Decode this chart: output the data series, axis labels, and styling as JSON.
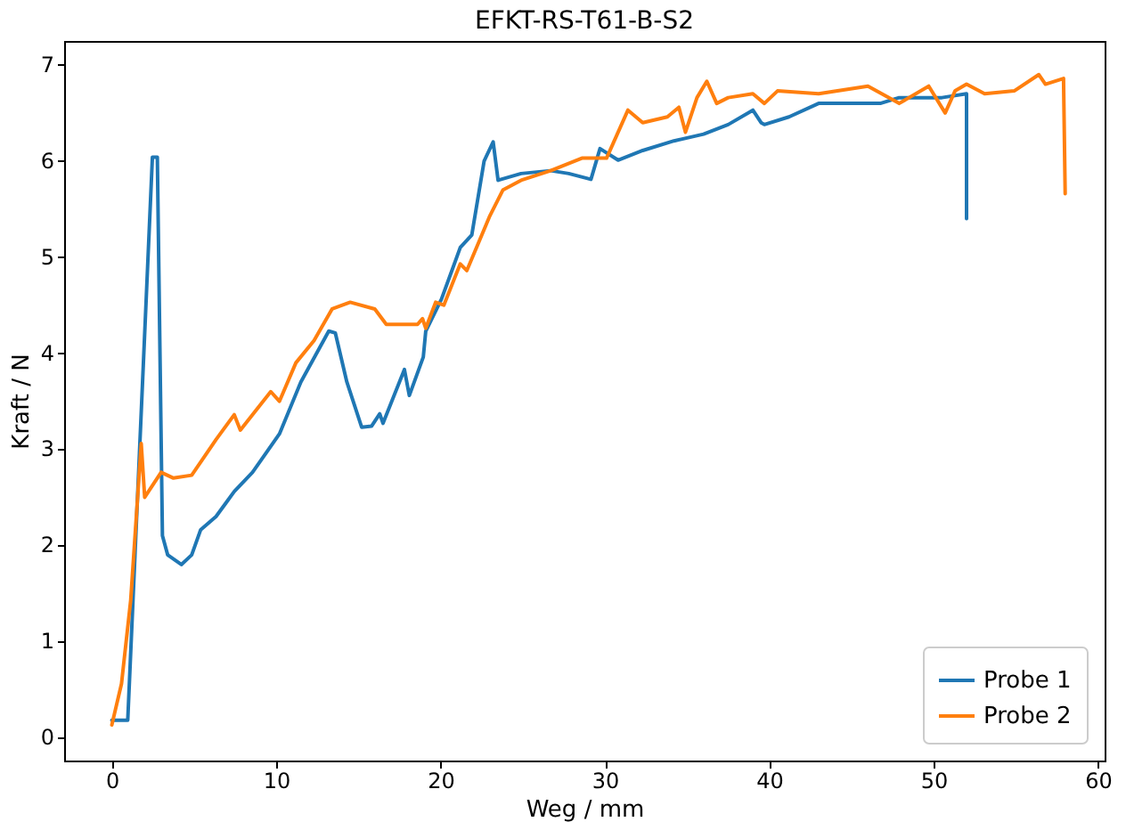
{
  "chart_data": {
    "type": "line",
    "title": "EFKT-RS-T61-B-S2",
    "xlabel": "Weg / mm",
    "ylabel": "Kraft / N",
    "xlim": [
      -2.9,
      60.4
    ],
    "ylim": [
      -0.25,
      7.24
    ],
    "xticks": [
      0,
      10,
      20,
      30,
      40,
      50,
      60
    ],
    "yticks": [
      0,
      1,
      2,
      3,
      4,
      5,
      6,
      7
    ],
    "grid": false,
    "legend": "bottom right",
    "marker": "none",
    "line_style": "solid",
    "series": [
      {
        "name": "Probe 1",
        "color": "#1f77b4",
        "x": [
          0,
          0.97,
          2.47,
          2.77,
          3.08,
          3.4,
          4.23,
          4.86,
          5.4,
          6.34,
          7.45,
          8.56,
          10.2,
          11.5,
          13.2,
          13.6,
          14.3,
          15.2,
          15.8,
          16.3,
          16.5,
          17.8,
          18.1,
          18.95,
          19.1,
          20.05,
          21.2,
          21.9,
          22.65,
          23.2,
          23.5,
          24.9,
          26.7,
          27.8,
          29.15,
          29.7,
          30.8,
          32.3,
          34.2,
          36.0,
          37.5,
          39.0,
          39.5,
          39.7,
          41.2,
          43.0,
          44.9,
          46.75,
          47.9,
          50.5,
          52.0,
          52.0
        ],
        "values": [
          0.17,
          0.17,
          6.03,
          6.03,
          2.09,
          1.89,
          1.79,
          1.89,
          2.15,
          2.29,
          2.55,
          2.75,
          3.15,
          3.69,
          4.22,
          4.2,
          3.69,
          3.22,
          3.23,
          3.36,
          3.26,
          3.82,
          3.55,
          3.95,
          4.22,
          4.55,
          5.09,
          5.22,
          5.99,
          6.19,
          5.79,
          5.86,
          5.89,
          5.86,
          5.8,
          6.12,
          6.0,
          6.1,
          6.2,
          6.27,
          6.37,
          6.52,
          6.39,
          6.37,
          6.45,
          6.59,
          6.59,
          6.59,
          6.65,
          6.65,
          6.69,
          5.39
        ]
      },
      {
        "name": "Probe 2",
        "color": "#ff7f0e",
        "x": [
          0,
          0.59,
          1.15,
          1.79,
          2.0,
          3.0,
          3.75,
          4.86,
          6.34,
          7.45,
          7.82,
          9.67,
          10.2,
          11.2,
          12.3,
          13.4,
          14.5,
          16.0,
          16.7,
          18.6,
          18.9,
          19.1,
          19.7,
          20.2,
          21.2,
          21.6,
          23.0,
          23.8,
          24.9,
          26.7,
          28.6,
          30.1,
          31.4,
          32.3,
          33.8,
          34.5,
          34.9,
          35.6,
          36.2,
          36.8,
          37.5,
          39.0,
          39.7,
          40.5,
          43.0,
          46.0,
          47.9,
          49.7,
          50.7,
          51.3,
          52.0,
          53.1,
          54.9,
          56.4,
          56.8,
          57.9,
          58.0
        ],
        "values": [
          0.12,
          0.55,
          1.42,
          3.05,
          2.49,
          2.75,
          2.69,
          2.72,
          3.09,
          3.35,
          3.19,
          3.59,
          3.49,
          3.89,
          4.12,
          4.45,
          4.52,
          4.45,
          4.29,
          4.29,
          4.35,
          4.25,
          4.52,
          4.49,
          4.92,
          4.85,
          5.42,
          5.69,
          5.79,
          5.89,
          6.02,
          6.02,
          6.52,
          6.39,
          6.45,
          6.55,
          6.29,
          6.65,
          6.82,
          6.59,
          6.65,
          6.69,
          6.59,
          6.72,
          6.69,
          6.77,
          6.59,
          6.77,
          6.49,
          6.72,
          6.79,
          6.69,
          6.72,
          6.89,
          6.79,
          6.85,
          5.65
        ]
      }
    ]
  }
}
